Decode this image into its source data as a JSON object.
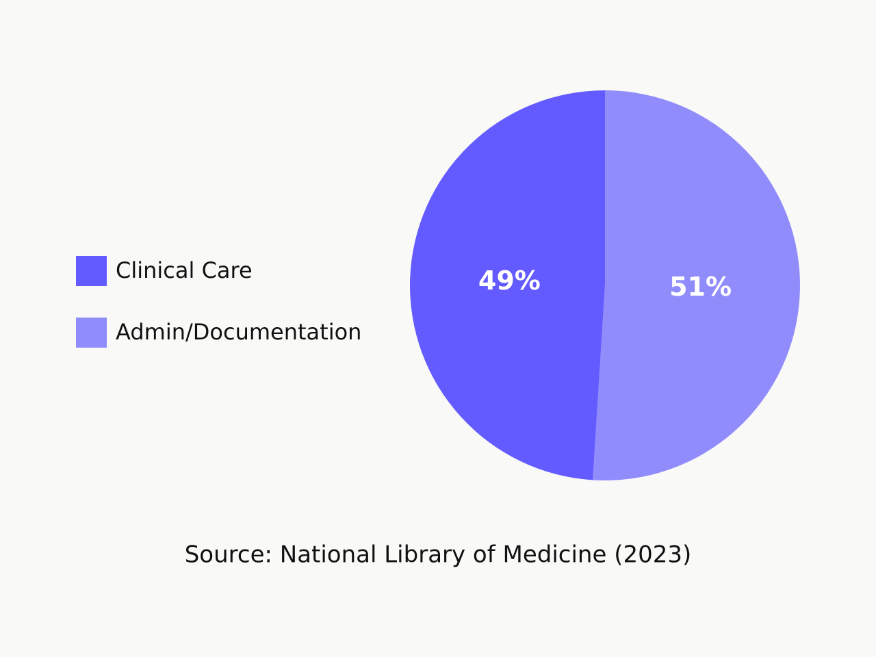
{
  "chart_data": {
    "type": "pie",
    "categories": [
      "Clinical Care",
      "Admin/Documentation"
    ],
    "values": [
      49,
      51
    ],
    "value_labels": [
      "49%",
      "51%"
    ],
    "colors": [
      "#635bff",
      "#918cfc"
    ],
    "legend": "left",
    "source": "Source: National Library of Medicine (2023)"
  }
}
